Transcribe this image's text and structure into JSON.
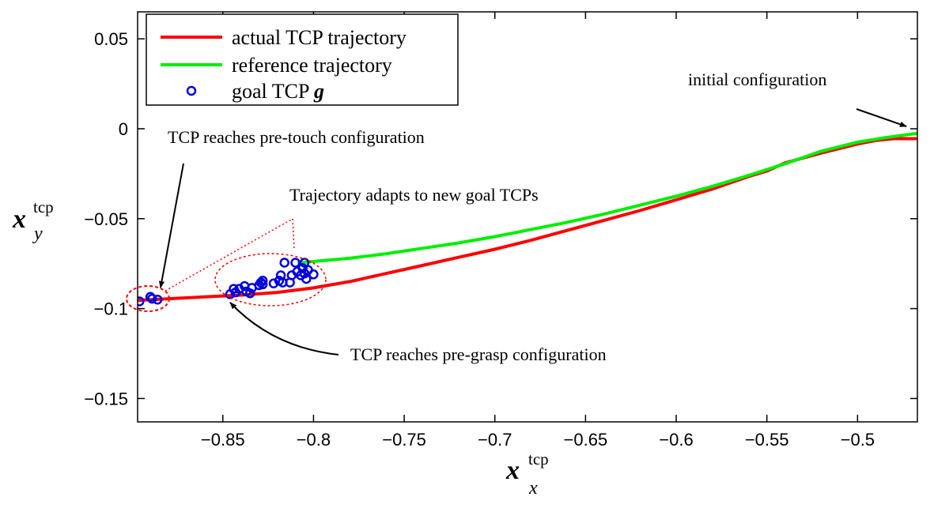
{
  "chart_data": {
    "type": "line",
    "xlabel": {
      "main": "x",
      "sub": "x",
      "sup": "tcp"
    },
    "ylabel": {
      "main": "x",
      "sub": "y",
      "sup": "tcp"
    },
    "xlim": [
      -0.897,
      -0.467
    ],
    "ylim": [
      -0.163,
      0.065
    ],
    "x_ticks": [
      -0.85,
      -0.8,
      -0.75,
      -0.7,
      -0.65,
      -0.6,
      -0.55,
      -0.5
    ],
    "x_tick_labels": [
      "−0.85",
      "−0.8",
      "−0.75",
      "−0.7",
      "−0.65",
      "−0.6",
      "−0.55",
      "−0.5"
    ],
    "y_ticks": [
      0.05,
      0,
      -0.05,
      -0.1,
      -0.15
    ],
    "y_tick_labels": [
      "0.05",
      "0",
      "−0.05",
      "−0.1",
      "−0.15"
    ],
    "grid": false,
    "legend_position": "top-left",
    "series": [
      {
        "name": "actual TCP trajectory",
        "color": "#ff0000",
        "style": "line",
        "points": [
          [
            -0.897,
            -0.0955
          ],
          [
            -0.88,
            -0.0945
          ],
          [
            -0.86,
            -0.0935
          ],
          [
            -0.84,
            -0.0925
          ],
          [
            -0.82,
            -0.091
          ],
          [
            -0.8,
            -0.0885
          ],
          [
            -0.78,
            -0.085
          ],
          [
            -0.76,
            -0.0805
          ],
          [
            -0.74,
            -0.076
          ],
          [
            -0.72,
            -0.0715
          ],
          [
            -0.7,
            -0.067
          ],
          [
            -0.68,
            -0.062
          ],
          [
            -0.66,
            -0.0565
          ],
          [
            -0.64,
            -0.051
          ],
          [
            -0.62,
            -0.0455
          ],
          [
            -0.6,
            -0.0395
          ],
          [
            -0.58,
            -0.0335
          ],
          [
            -0.56,
            -0.0265
          ],
          [
            -0.55,
            -0.0235
          ],
          [
            -0.54,
            -0.019
          ],
          [
            -0.52,
            -0.0135
          ],
          [
            -0.5,
            -0.0085
          ],
          [
            -0.49,
            -0.0065
          ],
          [
            -0.48,
            -0.0055
          ],
          [
            -0.472,
            -0.0055
          ],
          [
            -0.468,
            -0.0055
          ]
        ]
      },
      {
        "name": "reference trajectory",
        "color": "#00ee00",
        "style": "line",
        "points": [
          [
            -0.808,
            -0.0745
          ],
          [
            -0.78,
            -0.072
          ],
          [
            -0.76,
            -0.0695
          ],
          [
            -0.74,
            -0.0665
          ],
          [
            -0.72,
            -0.0635
          ],
          [
            -0.7,
            -0.06
          ],
          [
            -0.68,
            -0.056
          ],
          [
            -0.66,
            -0.052
          ],
          [
            -0.64,
            -0.0475
          ],
          [
            -0.62,
            -0.0425
          ],
          [
            -0.6,
            -0.0375
          ],
          [
            -0.58,
            -0.032
          ],
          [
            -0.56,
            -0.026
          ],
          [
            -0.54,
            -0.0195
          ],
          [
            -0.52,
            -0.0125
          ],
          [
            -0.5,
            -0.0075
          ],
          [
            -0.485,
            -0.005
          ],
          [
            -0.467,
            -0.0025
          ]
        ]
      },
      {
        "name": "goal TCP g",
        "name_suffix_bold_italic": "g",
        "color": "#0000dd",
        "style": "markers",
        "points": [
          [
            -0.896,
            -0.096
          ],
          [
            -0.89,
            -0.0935
          ],
          [
            -0.889,
            -0.0945
          ],
          [
            -0.886,
            -0.095
          ],
          [
            -0.846,
            -0.092
          ],
          [
            -0.844,
            -0.089
          ],
          [
            -0.843,
            -0.091
          ],
          [
            -0.841,
            -0.089
          ],
          [
            -0.838,
            -0.0875
          ],
          [
            -0.837,
            -0.0905
          ],
          [
            -0.835,
            -0.0915
          ],
          [
            -0.834,
            -0.0885
          ],
          [
            -0.83,
            -0.087
          ],
          [
            -0.829,
            -0.0855
          ],
          [
            -0.828,
            -0.0865
          ],
          [
            -0.828,
            -0.0845
          ],
          [
            -0.822,
            -0.086
          ],
          [
            -0.819,
            -0.0845
          ],
          [
            -0.818,
            -0.0815
          ],
          [
            -0.817,
            -0.0855
          ],
          [
            -0.816,
            -0.0745
          ],
          [
            -0.813,
            -0.0855
          ],
          [
            -0.812,
            -0.0815
          ],
          [
            -0.81,
            -0.0745
          ],
          [
            -0.809,
            -0.0795
          ],
          [
            -0.807,
            -0.0815
          ],
          [
            -0.806,
            -0.0775
          ],
          [
            -0.805,
            -0.0745
          ],
          [
            -0.805,
            -0.0805
          ],
          [
            -0.804,
            -0.0835
          ],
          [
            -0.803,
            -0.0785
          ],
          [
            -0.8,
            -0.081
          ]
        ]
      }
    ],
    "annotations": [
      {
        "id": "initial",
        "text": "initial configuration"
      },
      {
        "id": "pretouch",
        "text": "TCP reaches pre-touch configuration"
      },
      {
        "id": "adapt",
        "text": "Trajectory adapts to new goal TCPs"
      },
      {
        "id": "pregrasp",
        "text": "TCP reaches pre-grasp configuration"
      }
    ]
  }
}
